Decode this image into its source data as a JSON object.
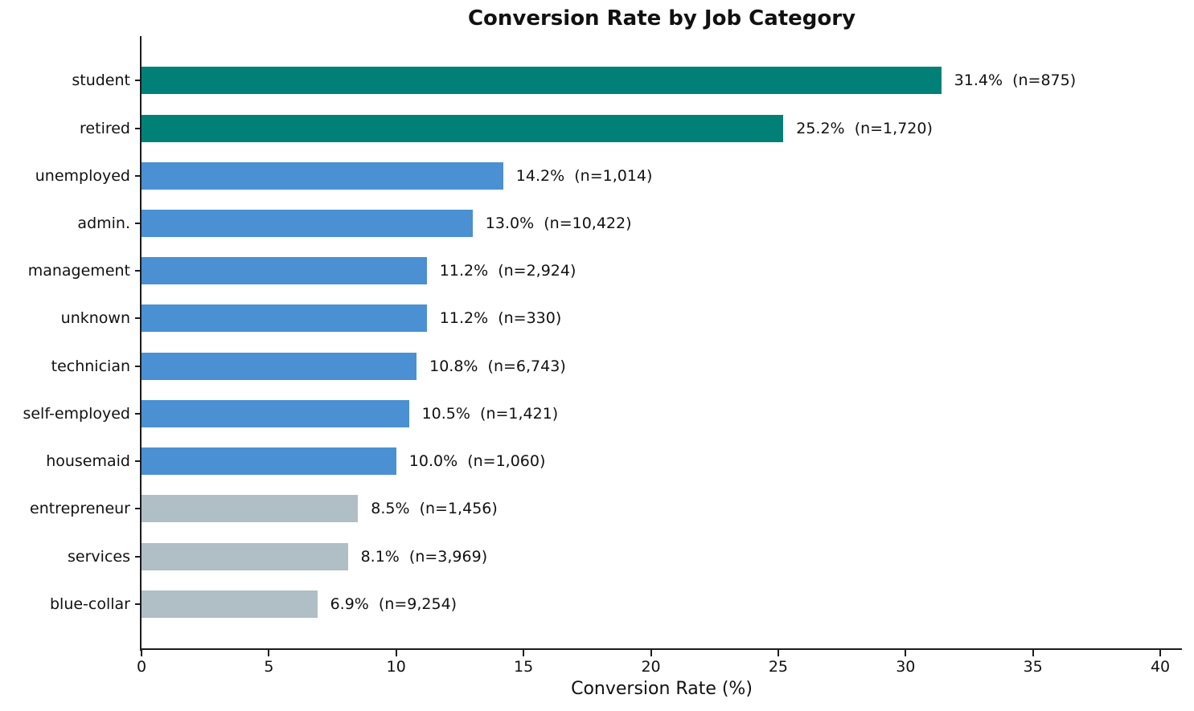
{
  "chart_data": {
    "type": "bar",
    "orientation": "horizontal",
    "title": "Conversion Rate by Job Category",
    "xlabel": "Conversion Rate (%)",
    "xlim": [
      0,
      40.85
    ],
    "xticks": [
      0,
      5,
      10,
      15,
      20,
      25,
      30,
      35,
      40
    ],
    "grid": false,
    "legend": "none",
    "categories": [
      "student",
      "retired",
      "unemployed",
      "admin.",
      "management",
      "unknown",
      "technician",
      "self-employed",
      "housemaid",
      "entrepreneur",
      "services",
      "blue-collar"
    ],
    "values": [
      31.4,
      25.2,
      14.2,
      13.0,
      11.2,
      11.2,
      10.8,
      10.5,
      10.0,
      8.5,
      8.1,
      6.9
    ],
    "counts": [
      875,
      1720,
      1014,
      10422,
      2924,
      330,
      6743,
      1421,
      1060,
      1456,
      3969,
      9254
    ],
    "bar_labels": [
      "31.4%  (n=875)",
      "25.2%  (n=1,720)",
      "14.2%  (n=1,014)",
      "13.0%  (n=10,422)",
      "11.2%  (n=2,924)",
      "11.2%  (n=330)",
      "10.8%  (n=6,743)",
      "10.5%  (n=1,421)",
      "10.0%  (n=1,060)",
      "8.5%  (n=1,456)",
      "8.1%  (n=3,969)",
      "6.9%  (n=9,254)"
    ],
    "bar_color_groups": [
      "teal",
      "teal",
      "blue",
      "blue",
      "blue",
      "blue",
      "blue",
      "blue",
      "blue",
      "gray",
      "gray",
      "gray"
    ],
    "colors": {
      "teal": "#008077",
      "blue": "#4a90d2",
      "gray": "#b0bec5",
      "axis": "#1c1c1c",
      "text": "#111111"
    }
  }
}
